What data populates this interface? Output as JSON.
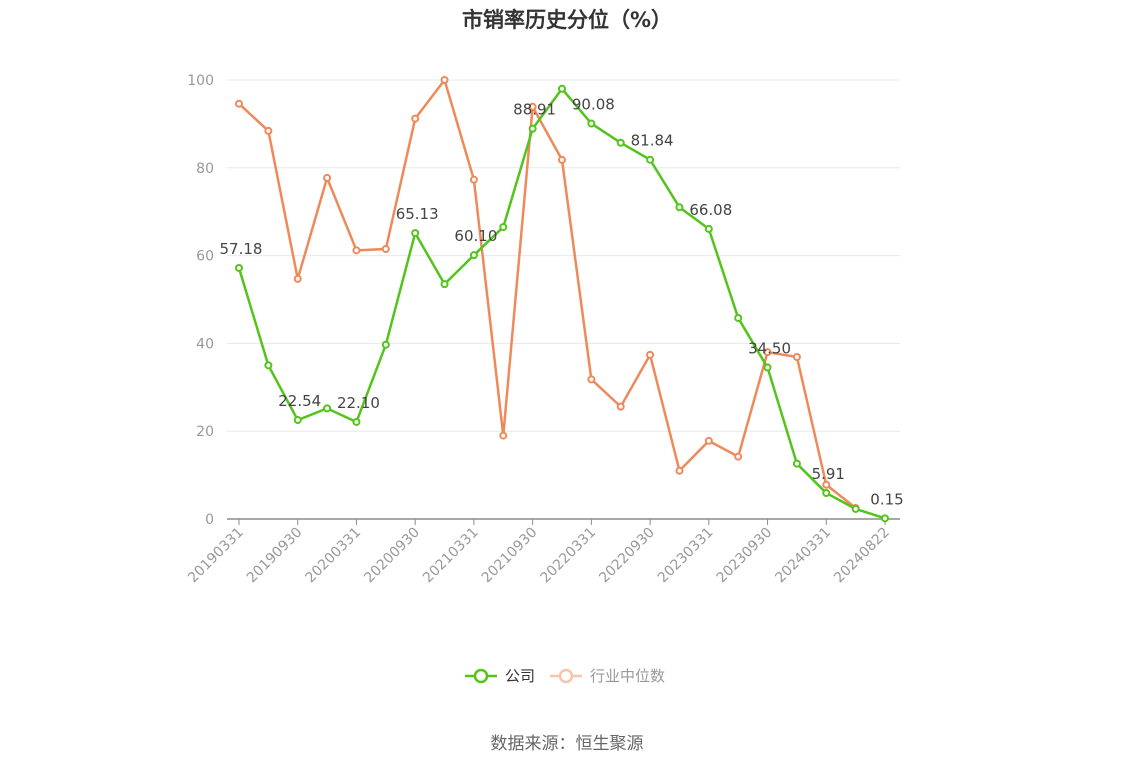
{
  "title": "市销率历史分位（%）",
  "source": "数据来源：恒生聚源",
  "chart_data": {
    "type": "line",
    "title": "市销率历史分位（%）",
    "xlabel": "",
    "ylabel": "",
    "ylim": [
      0,
      100
    ],
    "yticks": [
      0,
      20,
      40,
      60,
      80,
      100
    ],
    "grid": true,
    "legend_position": "bottom-center",
    "x": [
      "20190331",
      "20190630",
      "20190930",
      "20191231",
      "20200331",
      "20200630",
      "20200930",
      "20201231",
      "20210331",
      "20210630",
      "20210930",
      "20211231",
      "20220331",
      "20220630",
      "20220930",
      "20221231",
      "20230331",
      "20230630",
      "20230930",
      "20231231",
      "20240331",
      "20240630",
      "20240822"
    ],
    "x_tick_labels": [
      "20190331",
      "20190930",
      "20200331",
      "20200930",
      "20210331",
      "20210930",
      "20220331",
      "20220930",
      "20230331",
      "20230930",
      "20240331",
      "20240822"
    ],
    "series": [
      {
        "name": "公司",
        "color": "#52c41a",
        "values": [
          57.18,
          35.0,
          22.54,
          25.2,
          22.1,
          39.7,
          65.13,
          53.5,
          60.1,
          66.5,
          88.91,
          98.0,
          90.08,
          85.7,
          81.84,
          71.0,
          66.08,
          45.8,
          34.5,
          12.6,
          5.91,
          2.3,
          0.15
        ],
        "labels": {
          "0": "57.18",
          "2": "22.54",
          "4": "22.10",
          "6": "65.13",
          "8": "60.10",
          "10": "88.91",
          "12": "90.08",
          "14": "81.84",
          "16": "66.08",
          "18": "34.50",
          "20": "5.91",
          "22": "0.15"
        }
      },
      {
        "name": "行业中位数",
        "color": "#f0895a",
        "values": [
          94.6,
          88.4,
          54.7,
          77.7,
          61.2,
          61.5,
          91.2,
          100.0,
          77.3,
          19.0,
          93.9,
          81.8,
          31.8,
          25.6,
          37.4,
          11.0,
          17.8,
          14.2,
          38.0,
          36.9,
          7.8,
          2.5,
          null
        ]
      }
    ]
  }
}
